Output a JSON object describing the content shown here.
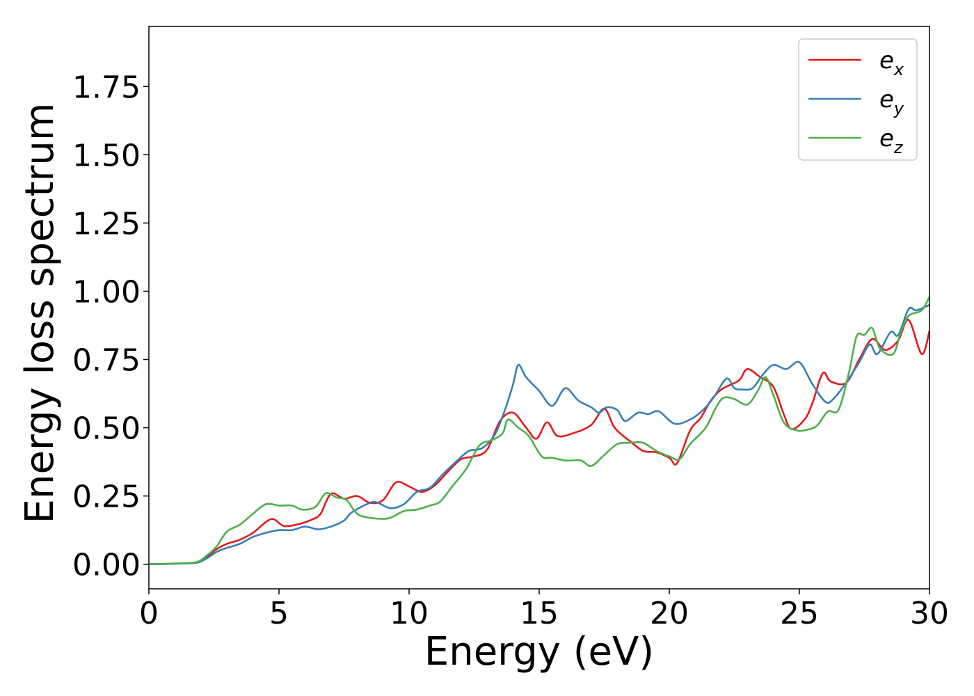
{
  "chart_data": {
    "type": "line",
    "title": "",
    "xlabel": "Energy (eV)",
    "ylabel": "Energy loss spectrum",
    "xlim": [
      0,
      30
    ],
    "ylim": [
      -0.09,
      1.97
    ],
    "xticks": [
      0,
      5,
      10,
      15,
      20,
      25,
      30
    ],
    "xtick_labels": [
      "0",
      "5",
      "10",
      "15",
      "20",
      "25",
      "30"
    ],
    "yticks": [
      0,
      0.25,
      0.5,
      0.75,
      1.0,
      1.25,
      1.5,
      1.75
    ],
    "ytick_labels": [
      "0.00",
      "0.25",
      "0.50",
      "0.75",
      "1.00",
      "1.25",
      "1.50",
      "1.75"
    ],
    "grid": false,
    "legend_position": "top-right",
    "series": [
      {
        "name": "ex",
        "label_base": "e",
        "label_sub": "x",
        "color": "#e41a1c",
        "points": [
          [
            0,
            0
          ],
          [
            1,
            0.002
          ],
          [
            1.8,
            0.006
          ],
          [
            2.2,
            0.025
          ],
          [
            2.6,
            0.055
          ],
          [
            3,
            0.075
          ],
          [
            3.5,
            0.09
          ],
          [
            4,
            0.115
          ],
          [
            4.5,
            0.155
          ],
          [
            4.8,
            0.165
          ],
          [
            5.2,
            0.14
          ],
          [
            5.8,
            0.148
          ],
          [
            6.3,
            0.165
          ],
          [
            6.6,
            0.185
          ],
          [
            7,
            0.258
          ],
          [
            7.5,
            0.24
          ],
          [
            8,
            0.25
          ],
          [
            8.5,
            0.225
          ],
          [
            9,
            0.235
          ],
          [
            9.5,
            0.3
          ],
          [
            10,
            0.285
          ],
          [
            10.5,
            0.265
          ],
          [
            11,
            0.29
          ],
          [
            11.5,
            0.34
          ],
          [
            12,
            0.385
          ],
          [
            12.5,
            0.395
          ],
          [
            13,
            0.42
          ],
          [
            13.5,
            0.525
          ],
          [
            14,
            0.555
          ],
          [
            14.5,
            0.5
          ],
          [
            14.9,
            0.46
          ],
          [
            15.3,
            0.52
          ],
          [
            15.7,
            0.47
          ],
          [
            16.3,
            0.48
          ],
          [
            17,
            0.51
          ],
          [
            17.5,
            0.57
          ],
          [
            17.9,
            0.5
          ],
          [
            18.5,
            0.45
          ],
          [
            19,
            0.415
          ],
          [
            19.5,
            0.41
          ],
          [
            20,
            0.39
          ],
          [
            20.3,
            0.37
          ],
          [
            20.8,
            0.49
          ],
          [
            21.2,
            0.535
          ],
          [
            21.6,
            0.6
          ],
          [
            22,
            0.64
          ],
          [
            22.3,
            0.655
          ],
          [
            22.7,
            0.675
          ],
          [
            23,
            0.715
          ],
          [
            23.5,
            0.685
          ],
          [
            24,
            0.65
          ],
          [
            24.4,
            0.55
          ],
          [
            24.7,
            0.495
          ],
          [
            25.2,
            0.53
          ],
          [
            25.5,
            0.59
          ],
          [
            25.9,
            0.7
          ],
          [
            26.2,
            0.67
          ],
          [
            26.8,
            0.665
          ],
          [
            27.3,
            0.75
          ],
          [
            27.8,
            0.825
          ],
          [
            28.3,
            0.785
          ],
          [
            28.8,
            0.82
          ],
          [
            29.2,
            0.895
          ],
          [
            29.7,
            0.77
          ],
          [
            30,
            0.855
          ]
        ]
      },
      {
        "name": "ey",
        "label_base": "e",
        "label_sub": "y",
        "color": "#377eb8",
        "points": [
          [
            0,
            0
          ],
          [
            1,
            0.002
          ],
          [
            1.8,
            0.005
          ],
          [
            2.2,
            0.02
          ],
          [
            2.6,
            0.045
          ],
          [
            3,
            0.06
          ],
          [
            3.5,
            0.075
          ],
          [
            4,
            0.1
          ],
          [
            4.5,
            0.115
          ],
          [
            5,
            0.125
          ],
          [
            5.5,
            0.125
          ],
          [
            6,
            0.138
          ],
          [
            6.5,
            0.128
          ],
          [
            7,
            0.138
          ],
          [
            7.5,
            0.16
          ],
          [
            7.8,
            0.19
          ],
          [
            8.5,
            0.225
          ],
          [
            8.8,
            0.225
          ],
          [
            9.3,
            0.205
          ],
          [
            9.8,
            0.22
          ],
          [
            10.3,
            0.265
          ],
          [
            10.8,
            0.28
          ],
          [
            11.3,
            0.33
          ],
          [
            11.8,
            0.375
          ],
          [
            12.3,
            0.415
          ],
          [
            12.8,
            0.425
          ],
          [
            13.3,
            0.475
          ],
          [
            13.7,
            0.57
          ],
          [
            14,
            0.66
          ],
          [
            14.2,
            0.73
          ],
          [
            14.5,
            0.685
          ],
          [
            15,
            0.635
          ],
          [
            15.5,
            0.58
          ],
          [
            16,
            0.645
          ],
          [
            16.5,
            0.6
          ],
          [
            17,
            0.575
          ],
          [
            17.3,
            0.555
          ],
          [
            17.6,
            0.575
          ],
          [
            18,
            0.565
          ],
          [
            18.3,
            0.525
          ],
          [
            18.8,
            0.555
          ],
          [
            19.2,
            0.55
          ],
          [
            19.6,
            0.56
          ],
          [
            20.2,
            0.515
          ],
          [
            20.8,
            0.53
          ],
          [
            21.3,
            0.565
          ],
          [
            21.7,
            0.61
          ],
          [
            22.2,
            0.68
          ],
          [
            22.5,
            0.645
          ],
          [
            22.8,
            0.64
          ],
          [
            23.2,
            0.645
          ],
          [
            23.6,
            0.695
          ],
          [
            24,
            0.73
          ],
          [
            24.5,
            0.715
          ],
          [
            25,
            0.74
          ],
          [
            25.5,
            0.66
          ],
          [
            26,
            0.595
          ],
          [
            26.3,
            0.605
          ],
          [
            26.8,
            0.665
          ],
          [
            27.3,
            0.74
          ],
          [
            27.7,
            0.805
          ],
          [
            28,
            0.77
          ],
          [
            28.5,
            0.85
          ],
          [
            28.8,
            0.84
          ],
          [
            29.2,
            0.935
          ],
          [
            29.5,
            0.93
          ],
          [
            30,
            0.95
          ]
        ]
      },
      {
        "name": "ez",
        "label_base": "e",
        "label_sub": "z",
        "color": "#4daf4a",
        "points": [
          [
            0,
            0
          ],
          [
            1,
            0.003
          ],
          [
            1.8,
            0.007
          ],
          [
            2.2,
            0.03
          ],
          [
            2.6,
            0.065
          ],
          [
            3,
            0.12
          ],
          [
            3.5,
            0.145
          ],
          [
            4,
            0.185
          ],
          [
            4.5,
            0.22
          ],
          [
            5,
            0.215
          ],
          [
            5.5,
            0.215
          ],
          [
            5.9,
            0.2
          ],
          [
            6.4,
            0.21
          ],
          [
            6.8,
            0.26
          ],
          [
            7.2,
            0.245
          ],
          [
            7.6,
            0.235
          ],
          [
            8,
            0.185
          ],
          [
            8.5,
            0.17
          ],
          [
            9.2,
            0.168
          ],
          [
            9.8,
            0.195
          ],
          [
            10.3,
            0.2
          ],
          [
            10.8,
            0.215
          ],
          [
            11.2,
            0.23
          ],
          [
            11.7,
            0.29
          ],
          [
            12.2,
            0.35
          ],
          [
            12.7,
            0.435
          ],
          [
            13.2,
            0.455
          ],
          [
            13.6,
            0.48
          ],
          [
            13.8,
            0.53
          ],
          [
            14.2,
            0.5
          ],
          [
            14.6,
            0.47
          ],
          [
            15.1,
            0.395
          ],
          [
            15.5,
            0.39
          ],
          [
            16,
            0.38
          ],
          [
            16.6,
            0.38
          ],
          [
            17,
            0.36
          ],
          [
            17.5,
            0.4
          ],
          [
            18,
            0.44
          ],
          [
            18.5,
            0.445
          ],
          [
            19,
            0.445
          ],
          [
            19.5,
            0.415
          ],
          [
            20,
            0.395
          ],
          [
            20.4,
            0.385
          ],
          [
            20.8,
            0.44
          ],
          [
            21.4,
            0.5
          ],
          [
            21.8,
            0.575
          ],
          [
            22.1,
            0.61
          ],
          [
            22.5,
            0.605
          ],
          [
            23,
            0.585
          ],
          [
            23.4,
            0.635
          ],
          [
            23.7,
            0.685
          ],
          [
            24,
            0.62
          ],
          [
            24.4,
            0.52
          ],
          [
            24.9,
            0.49
          ],
          [
            25.4,
            0.495
          ],
          [
            25.7,
            0.51
          ],
          [
            26.1,
            0.56
          ],
          [
            26.5,
            0.565
          ],
          [
            26.9,
            0.7
          ],
          [
            27.2,
            0.835
          ],
          [
            27.5,
            0.84
          ],
          [
            27.8,
            0.865
          ],
          [
            28.1,
            0.79
          ],
          [
            28.6,
            0.77
          ],
          [
            28.9,
            0.85
          ],
          [
            29.2,
            0.91
          ],
          [
            29.7,
            0.93
          ],
          [
            30,
            0.98
          ]
        ]
      }
    ]
  }
}
